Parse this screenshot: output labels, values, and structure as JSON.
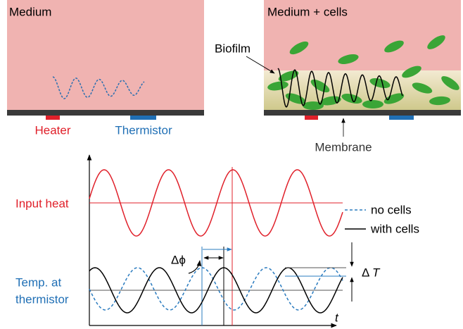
{
  "panels": [
    {
      "title": "Medium",
      "labels": [
        "Heater",
        "Thermistor"
      ]
    },
    {
      "title": "Medium + cells",
      "labels": [
        "Biofilm",
        "Membrane"
      ]
    }
  ],
  "plot": {
    "input_label": "Input heat",
    "temp_label": [
      "Temp. at",
      "thermistor"
    ],
    "legend": [
      "no cells",
      "with cells"
    ],
    "delta_phi": "Δϕ",
    "delta_T": [
      "Δ",
      "T"
    ],
    "t_axis": "t"
  }
}
